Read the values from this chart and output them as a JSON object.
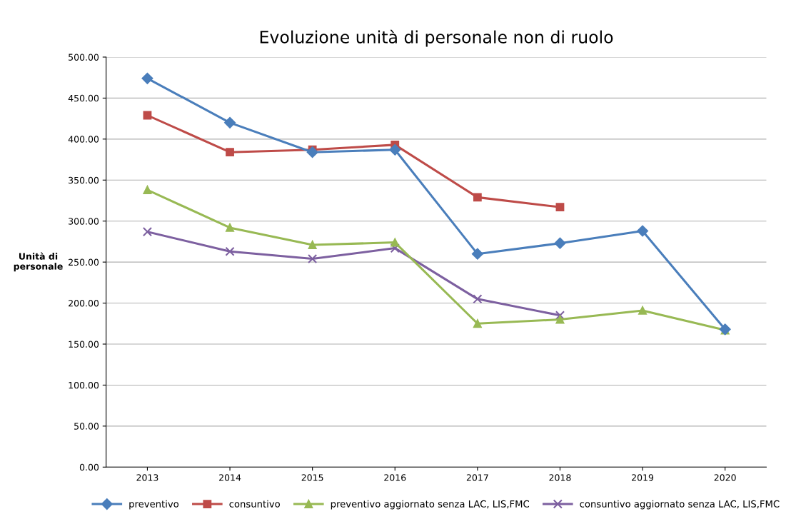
{
  "chart_data": {
    "type": "line",
    "title": "Evoluzione unità di personale non di ruolo",
    "ylabel": "Unità di\npersonale",
    "categories": [
      "2013",
      "2014",
      "2015",
      "2016",
      "2017",
      "2018",
      "2019",
      "2020"
    ],
    "series": [
      {
        "name": "preventivo",
        "color": "#4a7ebb",
        "marker": "diamond",
        "values": [
          474,
          420,
          384,
          387,
          260,
          273,
          288,
          168
        ]
      },
      {
        "name": "consuntivo",
        "color": "#be4b48",
        "marker": "square",
        "values": [
          429,
          384,
          387,
          393,
          329,
          317,
          null,
          null
        ]
      },
      {
        "name": "preventivo aggiornato senza LAC, LIS,FMC",
        "color": "#98b954",
        "marker": "triangle",
        "values": [
          338,
          292,
          271,
          274,
          175,
          180,
          191,
          167
        ]
      },
      {
        "name": "consuntivo aggiornato senza LAC, LIS,FMC",
        "color": "#7d60a0",
        "marker": "cross",
        "values": [
          287,
          263,
          254,
          267,
          205,
          185,
          null,
          null
        ]
      }
    ],
    "ylim": [
      0,
      500
    ],
    "yticks": [
      {
        "value": 0,
        "label": "0.00"
      },
      {
        "value": 50,
        "label": "50.00"
      },
      {
        "value": 100,
        "label": "100.00"
      },
      {
        "value": 150,
        "label": "150.00"
      },
      {
        "value": 200,
        "label": "200.00"
      },
      {
        "value": 250,
        "label": "250.00"
      },
      {
        "value": 300,
        "label": "300.00"
      },
      {
        "value": 350,
        "label": "350.00"
      },
      {
        "value": 400,
        "label": "400.00"
      },
      {
        "value": 450,
        "label": "450.00"
      },
      {
        "value": 500,
        "label": "500.00"
      }
    ],
    "grid": "y",
    "legend": "bottom",
    "line_style": "solid"
  }
}
